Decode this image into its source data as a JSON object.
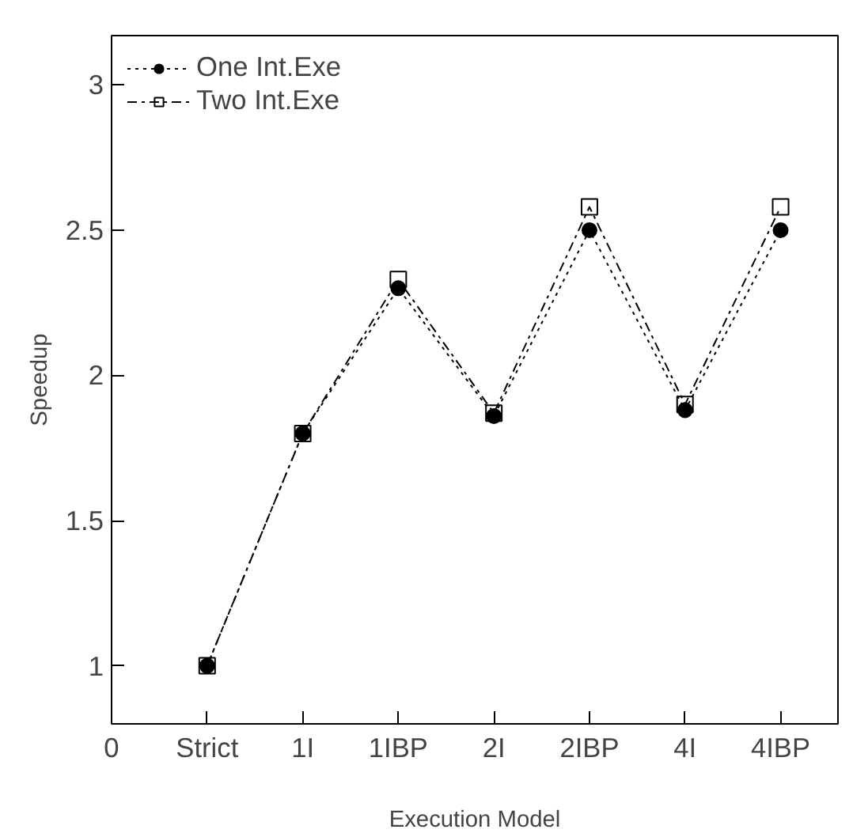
{
  "chart_data": {
    "type": "line",
    "xlabel": "Execution Model",
    "ylabel": "Speedup",
    "categories": [
      "0",
      "Strict",
      "1I",
      "1IBP",
      "2I",
      "2IBP",
      "4I",
      "4IBP"
    ],
    "ylim": [
      0.8,
      3.17
    ],
    "yticks": [
      1,
      1.5,
      2,
      2.5,
      3
    ],
    "grid": false,
    "legend": "top left",
    "series": [
      {
        "name": "One Int.Exe",
        "color": "#000000",
        "marker": "circle",
        "line_style": "dotted",
        "values": [
          null,
          1,
          1.8,
          2.3,
          1.86,
          2.5,
          1.88,
          2.5
        ]
      },
      {
        "name": "Two Int.Exe",
        "color": "#000000",
        "marker": "square",
        "line_style": "dashdot",
        "values": [
          null,
          1,
          1.8,
          2.33,
          1.87,
          2.58,
          1.9,
          2.58
        ]
      }
    ]
  }
}
